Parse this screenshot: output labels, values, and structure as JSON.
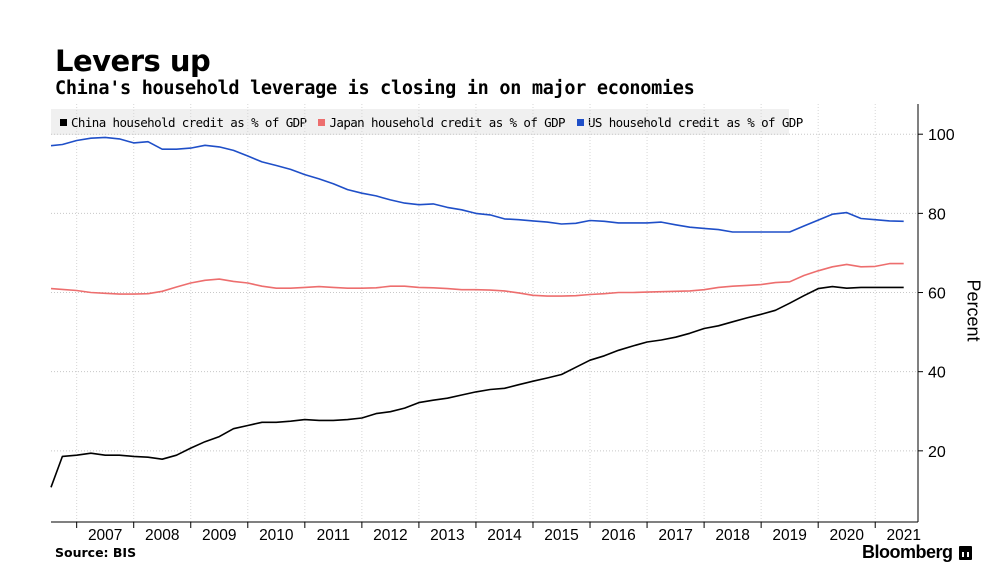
{
  "title": "Levers up",
  "subtitle": "China's household leverage is closing in on major economies",
  "source": "Source: BIS",
  "brand": "Bloomberg",
  "chart_data": {
    "type": "line",
    "xlabel": "",
    "ylabel": "Percent",
    "ylim": [
      0,
      108
    ],
    "y_ticks": [
      20,
      40,
      60,
      80,
      100
    ],
    "x_ticks": [
      "2007",
      "2008",
      "2009",
      "2010",
      "2011",
      "2012",
      "2013",
      "2014",
      "2015",
      "2016",
      "2017",
      "2018",
      "2019",
      "2020",
      "2021"
    ],
    "x_range": [
      2006.55,
      2021.75
    ],
    "grid": "horizontal dotted",
    "legend_position": "top",
    "series": [
      {
        "name": "China household credit as % of GDP",
        "color": "#000000",
        "x": [
          2006.55,
          2006.75,
          2007.0,
          2007.25,
          2007.5,
          2007.75,
          2008.0,
          2008.25,
          2008.5,
          2008.75,
          2009.0,
          2009.25,
          2009.5,
          2009.75,
          2010.0,
          2010.25,
          2010.5,
          2010.75,
          2011.0,
          2011.25,
          2011.5,
          2011.75,
          2012.0,
          2012.25,
          2012.5,
          2012.75,
          2013.0,
          2013.25,
          2013.5,
          2013.75,
          2014.0,
          2014.25,
          2014.5,
          2014.75,
          2015.0,
          2015.25,
          2015.5,
          2015.75,
          2016.0,
          2016.25,
          2016.5,
          2016.75,
          2017.0,
          2017.25,
          2017.5,
          2017.75,
          2018.0,
          2018.25,
          2018.5,
          2018.75,
          2019.0,
          2019.25,
          2019.5,
          2019.75,
          2020.0,
          2020.25,
          2020.5,
          2020.75,
          2021.0,
          2021.25,
          2021.5
        ],
        "values": [
          10.8,
          18.6,
          18.9,
          19.4,
          18.9,
          18.9,
          18.6,
          18.4,
          17.9,
          18.9,
          20.7,
          22.3,
          23.6,
          25.6,
          26.4,
          27.2,
          27.2,
          27.5,
          27.9,
          27.7,
          27.7,
          27.9,
          28.3,
          29.4,
          29.9,
          30.8,
          32.2,
          32.8,
          33.3,
          34.1,
          34.9,
          35.5,
          35.8,
          36.7,
          37.6,
          38.4,
          39.3,
          41.1,
          42.9,
          44.0,
          45.4,
          46.5,
          47.5,
          48.0,
          48.7,
          49.7,
          50.9,
          51.6,
          52.6,
          53.6,
          54.5,
          55.5,
          57.3,
          59.2,
          61.0,
          61.5,
          61.1,
          61.3,
          61.3,
          61.3,
          61.3
        ]
      },
      {
        "name": "Japan household credit as % of GDP",
        "color": "#ed6e6e",
        "x": [
          2006.55,
          2006.75,
          2007.0,
          2007.25,
          2007.5,
          2007.75,
          2008.0,
          2008.25,
          2008.5,
          2008.75,
          2009.0,
          2009.25,
          2009.5,
          2009.75,
          2010.0,
          2010.25,
          2010.5,
          2010.75,
          2011.0,
          2011.25,
          2011.5,
          2011.75,
          2012.0,
          2012.25,
          2012.5,
          2012.75,
          2013.0,
          2013.25,
          2013.5,
          2013.75,
          2014.0,
          2014.25,
          2014.5,
          2014.75,
          2015.0,
          2015.25,
          2015.5,
          2015.75,
          2016.0,
          2016.25,
          2016.5,
          2016.75,
          2017.0,
          2017.25,
          2017.5,
          2017.75,
          2018.0,
          2018.25,
          2018.5,
          2018.75,
          2019.0,
          2019.25,
          2019.5,
          2019.75,
          2020.0,
          2020.25,
          2020.5,
          2020.75,
          2021.0,
          2021.25,
          2021.5
        ],
        "values": [
          61.0,
          60.8,
          60.5,
          60.0,
          59.8,
          59.6,
          59.6,
          59.7,
          60.3,
          61.4,
          62.4,
          63.1,
          63.4,
          62.8,
          62.4,
          61.6,
          61.1,
          61.1,
          61.3,
          61.5,
          61.3,
          61.1,
          61.1,
          61.2,
          61.6,
          61.6,
          61.3,
          61.2,
          61.0,
          60.7,
          60.7,
          60.6,
          60.4,
          59.9,
          59.3,
          59.1,
          59.1,
          59.2,
          59.5,
          59.7,
          60.0,
          60.0,
          60.1,
          60.2,
          60.3,
          60.4,
          60.7,
          61.3,
          61.6,
          61.8,
          62.0,
          62.5,
          62.7,
          64.3,
          65.5,
          66.5,
          67.1,
          66.5,
          66.6,
          67.3,
          67.3
        ]
      },
      {
        "name": "US household credit as % of GDP",
        "color": "#1f4fc8",
        "x": [
          2006.55,
          2006.75,
          2007.0,
          2007.25,
          2007.5,
          2007.75,
          2008.0,
          2008.25,
          2008.5,
          2008.75,
          2009.0,
          2009.25,
          2009.5,
          2009.75,
          2010.0,
          2010.25,
          2010.5,
          2010.75,
          2011.0,
          2011.25,
          2011.5,
          2011.75,
          2012.0,
          2012.25,
          2012.5,
          2012.75,
          2013.0,
          2013.25,
          2013.5,
          2013.75,
          2014.0,
          2014.25,
          2014.5,
          2014.75,
          2015.0,
          2015.25,
          2015.5,
          2015.75,
          2016.0,
          2016.25,
          2016.5,
          2016.75,
          2017.0,
          2017.25,
          2017.5,
          2017.75,
          2018.0,
          2018.25,
          2018.5,
          2018.75,
          2019.0,
          2019.25,
          2019.5,
          2019.75,
          2020.0,
          2020.25,
          2020.5,
          2020.75,
          2021.0,
          2021.25,
          2021.5
        ],
        "values": [
          97.1,
          97.4,
          98.4,
          99.0,
          99.2,
          98.8,
          97.8,
          98.1,
          96.2,
          96.2,
          96.5,
          97.2,
          96.8,
          95.9,
          94.5,
          93.0,
          92.1,
          91.1,
          89.8,
          88.7,
          87.5,
          86.0,
          85.1,
          84.4,
          83.4,
          82.6,
          82.2,
          82.4,
          81.5,
          80.9,
          80.0,
          79.6,
          78.6,
          78.4,
          78.1,
          77.8,
          77.3,
          77.5,
          78.2,
          78.0,
          77.6,
          77.6,
          77.6,
          77.8,
          77.1,
          76.5,
          76.2,
          75.9,
          75.3,
          75.3,
          75.3,
          75.3,
          75.3,
          76.8,
          78.3,
          79.8,
          80.2,
          78.7,
          78.4,
          78.1,
          78.0
        ]
      }
    ]
  }
}
